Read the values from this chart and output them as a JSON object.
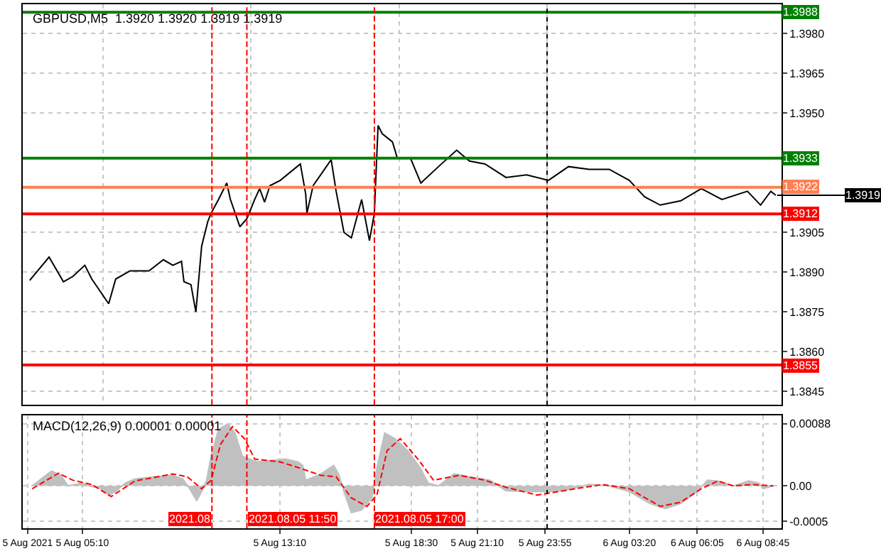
{
  "chart_data": [
    {
      "type": "line",
      "title": "GBPUSD,M5  1.3920 1.3920 1.3919 1.3919",
      "grid": true,
      "tick_labels": "y",
      "xlim": [
        "2021-08-05T02:45",
        "2021-08-06T09:30"
      ],
      "ylim": [
        1.384,
        1.3991
      ],
      "yticks": [
        1.3845,
        {
          "value": 1.386,
          "label": "1.3860"
        },
        1.3875,
        {
          "value": 1.389,
          "label": "1.3890"
        },
        1.3905,
        {
          "value": 1.395,
          "label": "1.3950"
        },
        1.3965,
        {
          "value": 1.398,
          "label": "1.3980"
        }
      ],
      "x": [
        "2021-08-05T03:02",
        "2021-08-05T03:49",
        "2021-08-05T04:24",
        "2021-08-05T04:47",
        "2021-08-05T05:16",
        "2021-08-05T05:33",
        "2021-08-05T06:14",
        "2021-08-05T06:31",
        "2021-08-05T07:06",
        "2021-08-05T07:52",
        "2021-08-05T08:27",
        "2021-08-05T08:50",
        "2021-08-05T09:11",
        "2021-08-05T09:17",
        "2021-08-05T09:34",
        "2021-08-05T09:46",
        "2021-08-05T10:00",
        "2021-08-05T10:15",
        "2021-08-05T10:23",
        "2021-08-05T10:41",
        "2021-08-05T11:01",
        "2021-08-05T11:10",
        "2021-08-05T11:33",
        "2021-08-05T11:50",
        "2021-08-05T12:09",
        "2021-08-05T12:21",
        "2021-08-05T12:33",
        "2021-08-05T12:46",
        "2021-08-05T13:11",
        "2021-08-05T14:00",
        "2021-08-05T14:13",
        "2021-08-05T14:16",
        "2021-08-05T14:31",
        "2021-08-05T15:15",
        "2021-08-05T15:27",
        "2021-08-05T15:46",
        "2021-08-05T16:04",
        "2021-08-05T16:29",
        "2021-08-05T16:48",
        "2021-08-05T17:00",
        "2021-08-05T17:09",
        "2021-08-05T17:19",
        "2021-08-05T17:44",
        "2021-08-05T17:56",
        "2021-08-05T18:28",
        "2021-08-05T18:53",
        "2021-08-05T19:36",
        "2021-08-05T20:20",
        "2021-08-05T20:51",
        "2021-08-05T21:29",
        "2021-08-05T22:20",
        "2021-08-05T23:10",
        "2021-08-06T00:03",
        "2021-08-06T00:52",
        "2021-08-06T01:42",
        "2021-08-06T02:31",
        "2021-08-06T03:20",
        "2021-08-06T03:57",
        "2021-08-06T04:35",
        "2021-08-06T05:25",
        "2021-08-06T06:15",
        "2021-08-06T07:05",
        "2021-08-06T08:07",
        "2021-08-06T08:39",
        "2021-08-06T09:04",
        "2021-08-06T09:16"
      ],
      "series": [
        {
          "color": "#000000",
          "values": [
            1.38869,
            1.38957,
            1.38864,
            1.38884,
            1.38926,
            1.38874,
            1.38781,
            1.38874,
            1.38905,
            1.38905,
            1.38947,
            1.38926,
            1.38941,
            1.38864,
            1.38853,
            1.3875,
            1.38998,
            1.39091,
            1.39122,
            1.39174,
            1.39236,
            1.39174,
            1.39071,
            1.39102,
            1.39174,
            1.39215,
            1.39164,
            1.39226,
            1.39246,
            1.39308,
            1.39195,
            1.39122,
            1.39226,
            1.39324,
            1.39205,
            1.3905,
            1.39029,
            1.39174,
            1.39019,
            1.39122,
            1.39453,
            1.39422,
            1.39391,
            1.39329,
            1.39329,
            1.39236,
            1.39298,
            1.3936,
            1.39319,
            1.39308,
            1.39257,
            1.39267,
            1.39246,
            1.39298,
            1.39288,
            1.39288,
            1.39246,
            1.39184,
            1.39153,
            1.39169,
            1.39215,
            1.39174,
            1.39205,
            1.39153,
            1.39205,
            1.3919
          ]
        }
      ],
      "ref_lines": [
        {
          "axis": "y",
          "value": 1.3988,
          "label": "1.3988",
          "color": "#008000"
        },
        {
          "axis": "y",
          "value": 1.3933,
          "label": "1.3933",
          "color": "#008000"
        },
        {
          "axis": "y",
          "value": 1.3922,
          "label": "1.3922",
          "color": "#ff7f50"
        },
        {
          "axis": "y",
          "value": 1.3912,
          "label": "1.3912",
          "color": "#ff0000"
        },
        {
          "axis": "y",
          "value": 1.3855,
          "label": "1.3855",
          "color": "#ff0000"
        },
        {
          "axis": "x",
          "value": "2021-08-05T10:25",
          "color": "#ff0000",
          "line_style": "dashed"
        },
        {
          "axis": "x",
          "value": "2021-08-05T11:50",
          "color": "#ff0000",
          "line_style": "dashed"
        },
        {
          "axis": "x",
          "value": "2021-08-05T17:00",
          "color": "#ff0000",
          "line_style": "dashed"
        },
        {
          "axis": "x",
          "value": "2021-08-06T00:00",
          "color": "#000000",
          "line_style": "dotted"
        }
      ],
      "annotations": [
        {
          "text": "1.3919",
          "x": "2021-08-06T09:16",
          "y": 1.3919
        }
      ]
    },
    {
      "type": "area",
      "title": "MACD(12,26,9) 0.00001 0.00001",
      "grid": true,
      "xlim": [
        "2021-08-05T02:45",
        "2021-08-06T09:30"
      ],
      "xticks": [
        {
          "value": "2021-08-05T02:57",
          "label": "5 Aug 2021"
        },
        {
          "value": "2021-08-05T05:10",
          "label": "5 Aug 05:10"
        },
        {
          "value": "2021-08-05T13:10",
          "label": "5 Aug 13:10"
        },
        {
          "value": "2021-08-05T18:30",
          "label": "5 Aug 18:30"
        },
        {
          "value": "2021-08-05T21:10",
          "label": "5 Aug 21:10"
        },
        {
          "value": "2021-08-05T23:55",
          "label": "5 Aug 23:55"
        },
        {
          "value": "2021-08-06T03:20",
          "label": "6 Aug 03:20"
        },
        {
          "value": "2021-08-06T06:05",
          "label": "6 Aug 06:05"
        },
        {
          "value": "2021-08-06T08:45",
          "label": "6 Aug 08:45"
        }
      ],
      "ylim": [
        -0.0006,
        0.001
      ],
      "yticks": [
        {
          "value": -0.0005,
          "label": "-0.0005"
        },
        {
          "value": 0,
          "label": "0.00"
        },
        {
          "value": 0.00088,
          "label": "0.00088"
        }
      ],
      "series": [
        {
          "type": "area",
          "color": "#c0c0c0",
          "x": [
            "2021-08-05T03:08",
            "2021-08-05T03:37",
            "2021-08-05T03:55",
            "2021-08-05T04:18",
            "2021-08-05T04:35",
            "2021-08-05T05:10",
            "2021-08-05T05:27",
            "2021-08-05T05:56",
            "2021-08-05T06:14",
            "2021-08-05T06:31",
            "2021-08-05T06:54",
            "2021-08-05T07:18",
            "2021-08-05T08:04",
            "2021-08-05T08:50",
            "2021-08-05T09:14",
            "2021-08-05T09:31",
            "2021-08-05T09:48",
            "2021-08-05T10:00",
            "2021-08-05T10:12",
            "2021-08-05T10:23",
            "2021-08-05T10:41",
            "2021-08-05T11:04",
            "2021-08-05T11:21",
            "2021-08-05T11:39",
            "2021-08-05T11:56",
            "2021-08-05T12:15",
            "2021-08-05T13:23",
            "2021-08-05T13:54",
            "2021-08-05T14:06",
            "2021-08-05T14:13",
            "2021-08-05T14:50",
            "2021-08-05T15:21",
            "2021-08-05T15:33",
            "2021-08-05T15:46",
            "2021-08-05T16:04",
            "2021-08-05T16:29",
            "2021-08-05T16:54",
            "2021-08-05T17:06",
            "2021-08-05T17:25",
            "2021-08-05T17:50",
            "2021-08-05T18:21",
            "2021-08-05T18:52",
            "2021-08-05T19:11",
            "2021-08-05T19:36",
            "2021-08-05T20:14",
            "2021-08-05T20:51",
            "2021-08-05T21:42",
            "2021-08-05T22:20",
            "2021-08-05T23:10",
            "2021-08-06T00:20",
            "2021-08-06T01:01",
            "2021-08-06T01:42",
            "2021-08-06T02:31",
            "2021-08-06T03:20",
            "2021-08-06T04:10",
            "2021-08-06T04:48",
            "2021-08-06T05:25",
            "2021-08-06T06:05",
            "2021-08-06T06:30",
            "2021-08-06T06:55",
            "2021-08-06T07:33",
            "2021-08-06T08:10",
            "2021-08-06T08:35",
            "2021-08-06T08:45",
            "2021-08-06T09:10"
          ],
          "values": [
            0,
            0.00013,
            0.00021,
            0.00015,
            0,
            4e-05,
            0,
            -4e-05,
            -0.00013,
            -8e-05,
            4e-05,
            0.0001,
            0.00013,
            0.00015,
            0.0001,
            -4e-05,
            -0.00021,
            -8e-05,
            8e-05,
            0.00042,
            0.0008,
            0.00088,
            0.00075,
            0.00042,
            0.00038,
            0.00034,
            0.00038,
            0.00034,
            0.00029,
            8e-05,
            0.00017,
            0.00029,
            0.00017,
            -8e-05,
            -0.00038,
            -0.00034,
            -0.00017,
            0.00025,
            0.00075,
            0.00067,
            0.0005,
            0.00025,
            4e-05,
            0,
            0.00017,
            0.00013,
            8e-05,
            -7e-05,
            -8e-05,
            -8e-05,
            -4e-05,
            2e-05,
            0,
            -8e-05,
            -0.00025,
            -0.00032,
            -0.00025,
            -8e-05,
            8e-05,
            7e-05,
            0,
            7e-05,
            4e-05,
            -4e-05,
            0
          ]
        },
        {
          "type": "line",
          "color": "#ff0000",
          "line_style": "dashed",
          "x": [
            "2021-08-05T03:08",
            "2021-08-05T04:12",
            "2021-08-05T04:47",
            "2021-08-05T05:33",
            "2021-08-05T06:20",
            "2021-08-05T07:18",
            "2021-08-05T08:50",
            "2021-08-05T09:25",
            "2021-08-05T10:00",
            "2021-08-05T10:23",
            "2021-08-05T10:46",
            "2021-08-05T11:15",
            "2021-08-05T11:44",
            "2021-08-05T12:09",
            "2021-08-05T13:11",
            "2021-08-05T14:00",
            "2021-08-05T14:50",
            "2021-08-05T15:27",
            "2021-08-05T16:04",
            "2021-08-05T16:42",
            "2021-08-05T17:06",
            "2021-08-05T17:31",
            "2021-08-05T18:03",
            "2021-08-05T18:46",
            "2021-08-05T19:24",
            "2021-08-05T20:26",
            "2021-08-05T21:29",
            "2021-08-05T22:20",
            "2021-08-05T23:36",
            "2021-08-06T01:09",
            "2021-08-06T02:15",
            "2021-08-06T03:20",
            "2021-08-06T04:35",
            "2021-08-06T05:25",
            "2021-08-06T06:15",
            "2021-08-06T06:55",
            "2021-08-06T07:33",
            "2021-08-06T08:20",
            "2021-08-06T09:10"
          ],
          "values": [
            -4e-05,
            0.00018,
            8e-05,
            2e-05,
            -0.00015,
            7e-05,
            0.00017,
            0.00013,
            -4e-05,
            8e-05,
            0.00059,
            0.00084,
            0.00067,
            0.00038,
            0.00034,
            0.00025,
            0.00015,
            0.00013,
            -0.00017,
            -0.00029,
            -0.00013,
            0.0005,
            0.00067,
            0.00038,
            8e-05,
            0.00015,
            8e-05,
            -2e-05,
            -0.00013,
            -4e-05,
            2e-05,
            -4e-05,
            -0.00029,
            -0.00023,
            -4e-05,
            7e-05,
            0,
            2e-05,
            0
          ]
        }
      ],
      "ref_lines": [
        {
          "axis": "x",
          "value": "2021-08-05T10:25",
          "label": "2021.08",
          "color": "#ff0000",
          "line_style": "dashed"
        },
        {
          "axis": "x",
          "value": "2021-08-05T11:50",
          "label": "2021.08.05 11:50",
          "color": "#ff0000",
          "line_style": "dashed"
        },
        {
          "axis": "x",
          "value": "2021-08-05T17:00",
          "label": "2021.08.05 17:00",
          "color": "#ff0000",
          "line_style": "dashed"
        },
        {
          "axis": "x",
          "value": "2021-08-06T00:00",
          "color": "#000000",
          "line_style": "dotted"
        }
      ]
    }
  ]
}
